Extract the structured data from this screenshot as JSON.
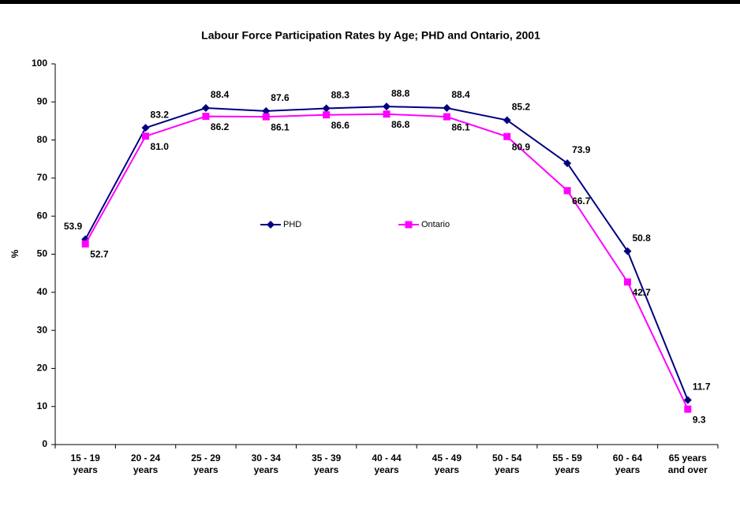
{
  "chart_data": {
    "type": "line",
    "title": "Labour Force Participation Rates by Age; PHD and Ontario, 2001",
    "y_label": "%",
    "categories": [
      "15 - 19 years",
      "20 - 24 years",
      "25 - 29 years",
      "30 - 34 years",
      "35 - 39 years",
      "40 - 44 years",
      "45 - 49 years",
      "50 - 54 years",
      "55 - 59 years",
      "60 - 64 years",
      "65 years and over"
    ],
    "series": [
      {
        "name": "PHD",
        "color": "#000080",
        "marker": "diamond",
        "values": [
          53.9,
          83.2,
          88.4,
          87.6,
          88.3,
          88.8,
          88.4,
          85.2,
          73.9,
          50.8,
          11.7
        ],
        "value_labels": [
          "53.9",
          "83.2",
          "88.4",
          "87.6",
          "88.3",
          "88.8",
          "88.4",
          "85.2",
          "73.9",
          "50.8",
          "11.7"
        ]
      },
      {
        "name": "Ontario",
        "color": "#ff00ff",
        "marker": "square",
        "values": [
          52.7,
          81.0,
          86.2,
          86.1,
          86.6,
          86.8,
          86.1,
          80.9,
          66.7,
          42.7,
          9.3
        ],
        "value_labels": [
          "52.7",
          "81.0",
          "86.2",
          "86.1",
          "86.6",
          "86.8",
          "86.1",
          "80.9",
          "66.7",
          "42.7",
          "9.3"
        ]
      }
    ],
    "ylim": [
      0,
      100
    ],
    "yticks": [
      0,
      10,
      20,
      30,
      40,
      50,
      60,
      70,
      80,
      90,
      100
    ],
    "grid": false
  }
}
